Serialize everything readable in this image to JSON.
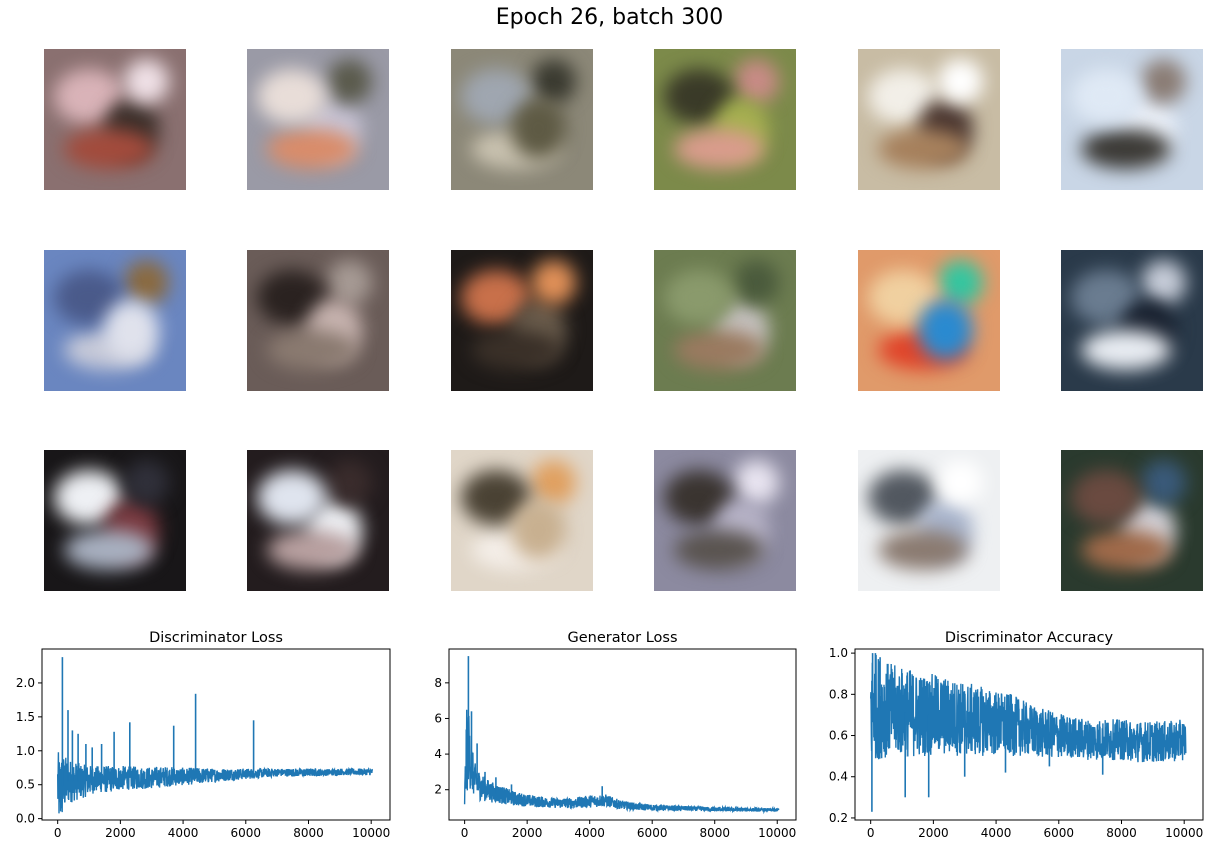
{
  "suptitle": "Epoch 26, batch 300",
  "samples": [
    {
      "bg": "#8a7070",
      "c": [
        "#d9b3b8",
        "#3b2f2a",
        "#a24b3c",
        "#efe0e6"
      ]
    },
    {
      "bg": "#9a9aa6",
      "c": [
        "#c7c3d4",
        "#d98c6a",
        "#5a5a4c",
        "#e8ddd8"
      ]
    },
    {
      "bg": "#8c8878",
      "c": [
        "#c9c2b0",
        "#3a3a30",
        "#9fa6b0",
        "#5e5a44"
      ]
    },
    {
      "bg": "#7c8a4a",
      "c": [
        "#c88b86",
        "#3a3a28",
        "#a6b050",
        "#d99c8c"
      ]
    },
    {
      "bg": "#c8bca4",
      "c": [
        "#f2efe8",
        "#4a3630",
        "#a6805c",
        "#ffffff"
      ]
    },
    {
      "bg": "#c9d6e6",
      "c": [
        "#eef3fb",
        "#3c3a36",
        "#8a7c74",
        "#dfe9f5"
      ]
    },
    {
      "bg": "#6a86c0",
      "c": [
        "#c6c9d8",
        "#8a6a40",
        "#4a5a8a",
        "#e0e2ec"
      ]
    },
    {
      "bg": "#6a5c58",
      "c": [
        "#a69a94",
        "#2a2220",
        "#c8b4b0",
        "#8a7a70"
      ]
    },
    {
      "bg": "#1e1a18",
      "c": [
        "#c8704a",
        "#6a5c4c",
        "#3a3028",
        "#e09058"
      ]
    },
    {
      "bg": "#6c7c50",
      "c": [
        "#c6c2c0",
        "#9a7a60",
        "#4a5a3c",
        "#8a9a6c"
      ]
    },
    {
      "bg": "#e09a6a",
      "c": [
        "#e0442a",
        "#34c6a0",
        "#f0d0a0",
        "#2a8ad0"
      ]
    },
    {
      "bg": "#2a3a4a",
      "c": [
        "#c6ccd8",
        "#6a7c90",
        "#1a2230",
        "#e8ecf2"
      ]
    },
    {
      "bg": "#181618",
      "c": [
        "#eef0f4",
        "#7a3a40",
        "#a8b0c0",
        "#30303a"
      ]
    },
    {
      "bg": "#231c1e",
      "c": [
        "#f0f2f6",
        "#b8a0a0",
        "#3a2c2c",
        "#dfe4ee"
      ]
    },
    {
      "bg": "#e0d6c8",
      "c": [
        "#f4eee8",
        "#e0a060",
        "#4a4234",
        "#c8b090"
      ]
    },
    {
      "bg": "#8c8aa0",
      "c": [
        "#e8e4f0",
        "#3a3430",
        "#b8b4c8",
        "#5a5450"
      ]
    },
    {
      "bg": "#eef0f2",
      "c": [
        "#525860",
        "#a8b4cc",
        "#8a7a70",
        "#ffffff"
      ]
    },
    {
      "bg": "#2a3a2e",
      "c": [
        "#d4d2d8",
        "#a06a4a",
        "#3a5a7a",
        "#6a4a40"
      ]
    }
  ],
  "chart_data": [
    {
      "type": "line",
      "title": "Discriminator Loss",
      "color": "#1f77b4",
      "xlim": [
        -500,
        10600
      ],
      "ylim": [
        -0.02,
        2.5
      ],
      "xticks": [
        0,
        2000,
        4000,
        6000,
        8000,
        10000
      ],
      "yticks": [
        0.0,
        0.5,
        1.0,
        1.5,
        2.0
      ],
      "yticklabels": [
        "0.0",
        "0.5",
        "1.0",
        "1.5",
        "2.0"
      ],
      "x": [
        0,
        60,
        120,
        180,
        300,
        500,
        800,
        1200,
        1600,
        2000,
        2500,
        3000,
        3500,
        4000,
        4500,
        5000,
        5500,
        6000,
        6500,
        7000,
        7500,
        8000,
        8500,
        9000,
        9500,
        10050
      ],
      "center": [
        0.5,
        0.4,
        0.45,
        0.5,
        0.55,
        0.55,
        0.55,
        0.58,
        0.58,
        0.6,
        0.6,
        0.6,
        0.62,
        0.62,
        0.63,
        0.64,
        0.65,
        0.66,
        0.67,
        0.68,
        0.68,
        0.68,
        0.68,
        0.69,
        0.69,
        0.69
      ],
      "spread": [
        0.5,
        0.55,
        0.5,
        0.45,
        0.35,
        0.3,
        0.25,
        0.2,
        0.2,
        0.18,
        0.17,
        0.16,
        0.15,
        0.13,
        0.12,
        0.1,
        0.09,
        0.08,
        0.07,
        0.06,
        0.06,
        0.06,
        0.05,
        0.05,
        0.05,
        0.05
      ],
      "spikes": [
        [
          150,
          2.38
        ],
        [
          330,
          1.6
        ],
        [
          470,
          1.3
        ],
        [
          650,
          1.25
        ],
        [
          900,
          1.1
        ],
        [
          1100,
          1.05
        ],
        [
          1400,
          1.1
        ],
        [
          1800,
          1.28
        ],
        [
          2300,
          1.42
        ],
        [
          3700,
          1.37
        ],
        [
          4400,
          1.84
        ],
        [
          6250,
          1.45
        ]
      ]
    },
    {
      "type": "line",
      "title": "Generator Loss",
      "color": "#1f77b4",
      "xlim": [
        -500,
        10600
      ],
      "ylim": [
        0.3,
        9.9
      ],
      "xticks": [
        0,
        2000,
        4000,
        6000,
        8000,
        10000
      ],
      "yticks": [
        2,
        4,
        6,
        8
      ],
      "yticklabels": [
        "2",
        "4",
        "6",
        "8"
      ],
      "x": [
        0,
        60,
        120,
        200,
        300,
        500,
        800,
        1200,
        1600,
        2000,
        2500,
        3000,
        3500,
        4000,
        4500,
        5000,
        5500,
        6000,
        6500,
        7000,
        7500,
        8000,
        8500,
        9000,
        9500,
        10050
      ],
      "center": [
        1.5,
        4.0,
        4.5,
        3.5,
        2.6,
        2.2,
        1.9,
        1.7,
        1.5,
        1.4,
        1.3,
        1.25,
        1.25,
        1.35,
        1.4,
        1.15,
        1.05,
        1.0,
        0.98,
        0.95,
        0.93,
        0.9,
        0.9,
        0.88,
        0.87,
        0.86
      ],
      "spread": [
        0.8,
        2.5,
        2.2,
        1.6,
        1.0,
        0.8,
        0.6,
        0.5,
        0.4,
        0.35,
        0.3,
        0.28,
        0.3,
        0.35,
        0.35,
        0.25,
        0.2,
        0.18,
        0.15,
        0.14,
        0.13,
        0.12,
        0.12,
        0.11,
        0.1,
        0.1
      ],
      "spikes": [
        [
          120,
          9.5
        ],
        [
          220,
          6.4
        ],
        [
          400,
          4.6
        ],
        [
          650,
          3.0
        ],
        [
          1000,
          2.7
        ],
        [
          1500,
          2.3
        ],
        [
          4400,
          2.2
        ]
      ]
    },
    {
      "type": "line",
      "title": "Discriminator Accuracy",
      "color": "#1f77b4",
      "xlim": [
        -500,
        10600
      ],
      "ylim": [
        0.19,
        1.02
      ],
      "xticks": [
        0,
        2000,
        4000,
        6000,
        8000,
        10000
      ],
      "yticks": [
        0.2,
        0.4,
        0.6,
        0.8,
        1.0
      ],
      "yticklabels": [
        "0.2",
        "0.4",
        "0.6",
        "0.8",
        "1.0"
      ],
      "x": [
        0,
        60,
        200,
        400,
        800,
        1200,
        1600,
        2000,
        2500,
        3000,
        3500,
        4000,
        4500,
        5000,
        5500,
        6000,
        6500,
        7000,
        7500,
        8000,
        8500,
        9000,
        9500,
        10050
      ],
      "center": [
        0.7,
        0.75,
        0.74,
        0.73,
        0.72,
        0.71,
        0.7,
        0.7,
        0.69,
        0.68,
        0.67,
        0.66,
        0.65,
        0.63,
        0.61,
        0.6,
        0.59,
        0.58,
        0.58,
        0.58,
        0.57,
        0.57,
        0.57,
        0.58
      ],
      "spread": [
        0.3,
        0.26,
        0.26,
        0.24,
        0.22,
        0.22,
        0.2,
        0.2,
        0.19,
        0.18,
        0.17,
        0.16,
        0.15,
        0.13,
        0.12,
        0.11,
        0.1,
        0.1,
        0.1,
        0.1,
        0.1,
        0.1,
        0.1,
        0.1
      ],
      "spikes": [
        [
          40,
          0.23
        ],
        [
          60,
          1.0
        ],
        [
          150,
          1.0
        ],
        [
          300,
          0.98
        ],
        [
          1100,
          0.3
        ],
        [
          1850,
          0.3
        ],
        [
          3000,
          0.4
        ],
        [
          4300,
          0.42
        ],
        [
          5700,
          0.45
        ],
        [
          7400,
          0.41
        ]
      ]
    }
  ]
}
